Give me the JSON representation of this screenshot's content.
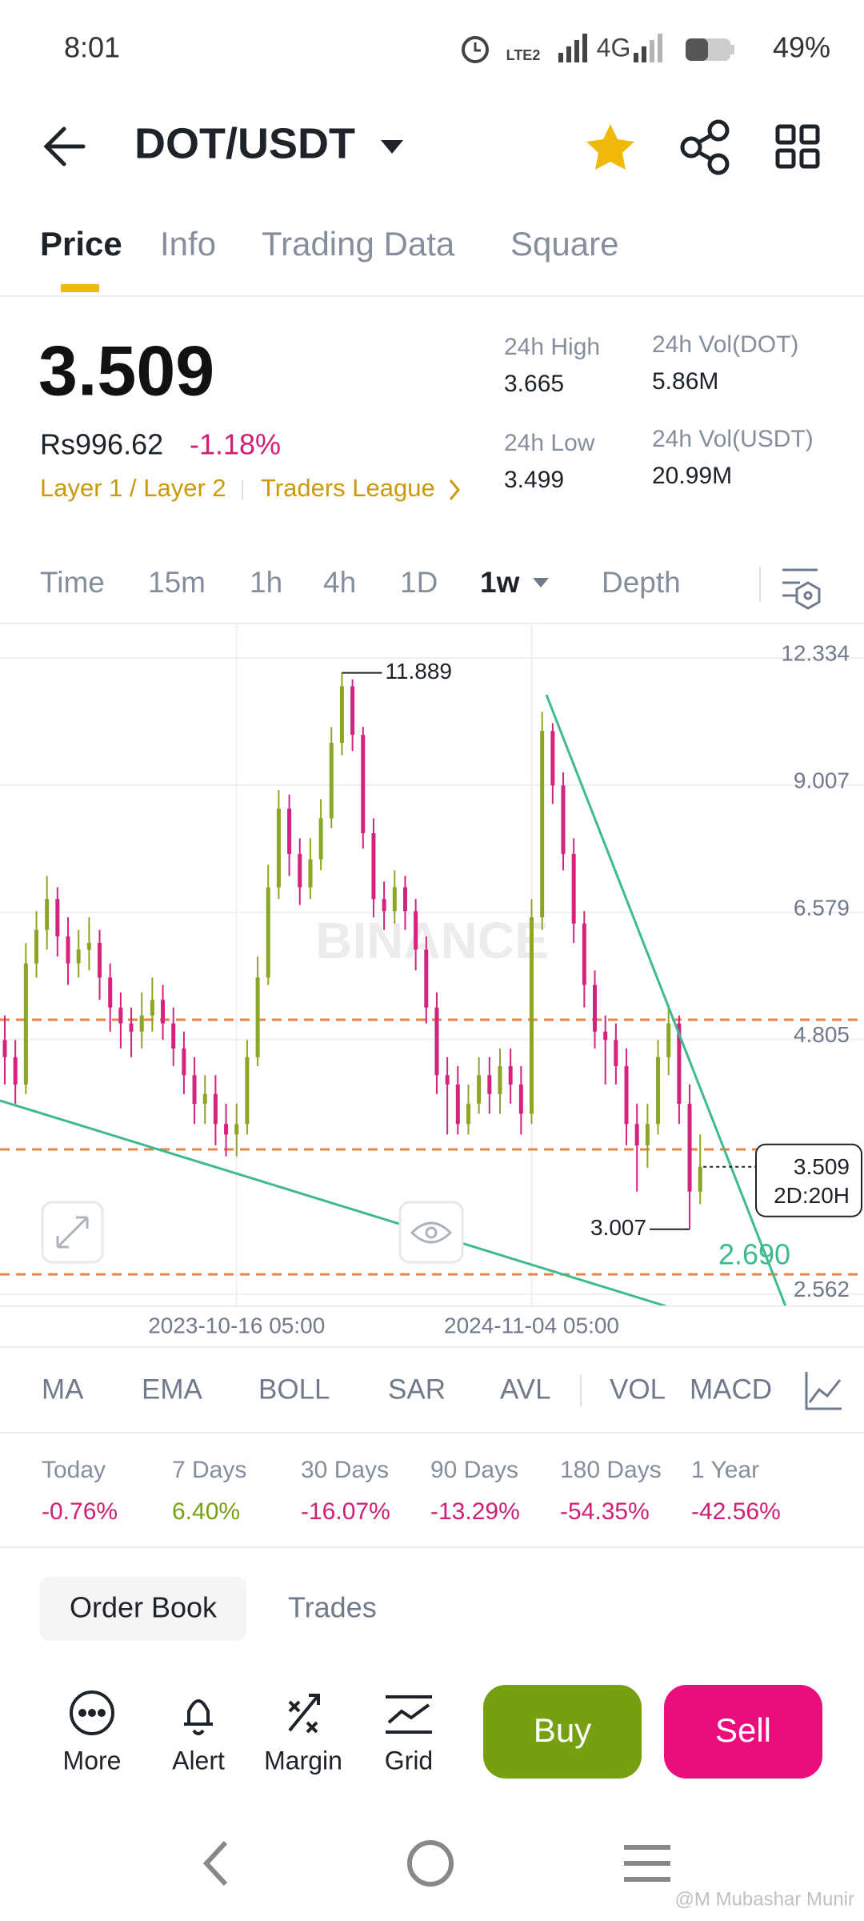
{
  "status_bar": {
    "time": "8:01",
    "volte": "LTE2",
    "network": "4G",
    "battery": "49%"
  },
  "header": {
    "pair": "DOT/USDT"
  },
  "tabs": [
    "Price",
    "Info",
    "Trading Data",
    "Square"
  ],
  "ticker": {
    "price": "3.509",
    "local_price": "Rs996.62",
    "change": "-1.18%",
    "tags": [
      "Layer 1 / Layer 2",
      "Traders League"
    ],
    "stats": [
      {
        "label": "24h High",
        "value": "3.665"
      },
      {
        "label": "24h Low",
        "value": "3.499"
      },
      {
        "label": "24h Vol(DOT)",
        "value": "5.86M"
      },
      {
        "label": "24h Vol(USDT)",
        "value": "20.99M"
      }
    ]
  },
  "intervals": [
    "Time",
    "15m",
    "1h",
    "4h",
    "1D",
    "1w",
    "Depth"
  ],
  "chart_data": {
    "type": "candlestick",
    "watermark": "BINANCE",
    "categories": [
      null,
      null,
      null,
      null,
      null,
      null,
      null,
      null,
      null,
      null,
      null,
      null,
      null,
      null,
      null,
      null,
      null,
      null,
      null,
      null,
      null,
      null,
      "2023-10-16 05:00",
      null,
      null,
      null,
      null,
      null,
      null,
      null,
      null,
      null,
      null,
      null,
      null,
      null,
      null,
      null,
      null,
      null,
      null,
      null,
      null,
      null,
      null,
      null,
      null,
      null,
      null,
      null,
      "2024-11-04 05:00",
      null,
      null,
      null,
      null,
      null,
      null,
      null,
      null,
      null,
      null,
      null,
      null,
      null,
      null,
      null,
      null
    ],
    "open": [
      4.8,
      4.6,
      4.3,
      5.8,
      6.3,
      6.8,
      6.2,
      5.8,
      6.0,
      6.1,
      5.6,
      5.2,
      5.0,
      4.9,
      5.1,
      5.3,
      5.0,
      4.7,
      4.4,
      4.1,
      4.2,
      3.9,
      3.8,
      3.9,
      4.6,
      5.6,
      7.0,
      8.5,
      7.6,
      7.0,
      7.5,
      8.3,
      10.0,
      11.5,
      10.2,
      8.0,
      6.8,
      6.6,
      7.0,
      6.6,
      6.0,
      5.2,
      4.4,
      4.3,
      3.9,
      4.1,
      4.4,
      4.2,
      4.5,
      4.3,
      4.0,
      6.5,
      10.3,
      9.0,
      7.6,
      6.4,
      5.5,
      4.9,
      4.8,
      4.5,
      3.9,
      3.7,
      3.9,
      4.6,
      5.0,
      4.1,
      3.3
    ],
    "high": [
      5.1,
      4.8,
      6.1,
      6.6,
      7.2,
      7.0,
      6.5,
      6.3,
      6.5,
      6.3,
      5.8,
      5.4,
      5.2,
      5.4,
      5.6,
      5.5,
      5.2,
      4.9,
      4.6,
      4.4,
      4.4,
      4.1,
      4.1,
      4.8,
      5.9,
      7.4,
      8.9,
      8.8,
      7.9,
      7.9,
      8.7,
      10.4,
      11.889,
      11.7,
      10.4,
      8.3,
      7.1,
      7.3,
      7.2,
      6.8,
      6.2,
      5.4,
      4.6,
      4.5,
      4.3,
      4.6,
      4.6,
      4.7,
      4.7,
      4.5,
      6.8,
      10.8,
      10.5,
      9.3,
      7.9,
      6.6,
      5.7,
      5.1,
      5.0,
      4.7,
      4.1,
      4.1,
      4.8,
      5.2,
      5.1,
      4.3,
      3.8
    ],
    "low": [
      4.3,
      4.1,
      4.2,
      5.6,
      6.0,
      5.9,
      5.5,
      5.6,
      5.7,
      5.3,
      4.9,
      4.7,
      4.6,
      4.7,
      4.9,
      4.8,
      4.5,
      4.2,
      3.9,
      3.9,
      3.7,
      3.6,
      3.6,
      3.8,
      4.5,
      5.5,
      6.8,
      7.2,
      6.7,
      6.8,
      7.3,
      8.1,
      9.7,
      9.8,
      7.7,
      6.5,
      6.3,
      6.4,
      6.3,
      5.7,
      5.0,
      4.2,
      3.8,
      3.8,
      3.8,
      4.0,
      4.0,
      4.0,
      4.1,
      3.8,
      3.9,
      6.3,
      8.6,
      7.3,
      6.1,
      5.2,
      4.7,
      4.3,
      4.3,
      3.7,
      3.3,
      3.5,
      3.8,
      4.4,
      3.9,
      3.007,
      3.2
    ],
    "close": [
      4.6,
      4.3,
      5.8,
      6.3,
      6.8,
      6.2,
      5.8,
      6.0,
      6.1,
      5.6,
      5.2,
      5.0,
      4.9,
      5.1,
      5.3,
      5.0,
      4.7,
      4.4,
      4.1,
      4.2,
      3.9,
      3.8,
      3.9,
      4.6,
      5.6,
      7.0,
      8.5,
      7.6,
      7.0,
      7.5,
      8.3,
      10.0,
      11.5,
      10.2,
      8.0,
      6.8,
      6.6,
      7.0,
      6.6,
      6.0,
      5.2,
      4.4,
      4.3,
      3.9,
      4.1,
      4.4,
      4.2,
      4.5,
      4.3,
      4.0,
      6.5,
      10.3,
      9.0,
      7.6,
      6.4,
      5.5,
      4.9,
      4.8,
      4.5,
      3.9,
      3.7,
      3.9,
      4.6,
      5.0,
      4.1,
      3.3,
      3.509
    ],
    "up_color": "#8aa624",
    "down_color": "#d4237f",
    "ylim": [
      2.486,
      13.43
    ],
    "yticks": [
      12.334,
      9.007,
      6.579,
      4.805,
      2.562
    ],
    "log_scale": true,
    "grid": true,
    "high_mark": 32,
    "low_mark": 65,
    "countdown": "2D:20H",
    "level": {
      "value": 2.69,
      "label": "2.690"
    }
  },
  "indicators": [
    "MA",
    "EMA",
    "BOLL",
    "SAR",
    "AVL",
    "VOL",
    "MACD"
  ],
  "performance": [
    {
      "label": "Today",
      "value": "-0.76%"
    },
    {
      "label": "7 Days",
      "value": "6.40%"
    },
    {
      "label": "30 Days",
      "value": "-16.07%"
    },
    {
      "label": "90 Days",
      "value": "-13.29%"
    },
    {
      "label": "180 Days",
      "value": "-54.35%"
    },
    {
      "label": "1 Year",
      "value": "-42.56%"
    }
  ],
  "book_tabs": [
    "Order Book",
    "Trades"
  ],
  "actions": [
    "More",
    "Alert",
    "Margin",
    "Grid"
  ],
  "buttons": [
    "Buy",
    "Sell"
  ],
  "watermark": "@M Mubashar Munir"
}
